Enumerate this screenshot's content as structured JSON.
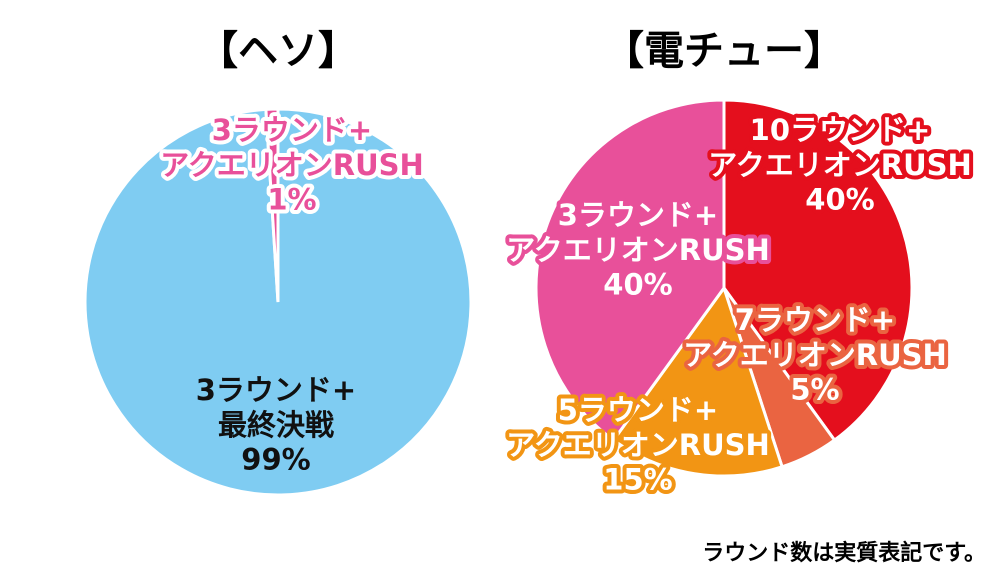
{
  "chart_data": [
    {
      "type": "pie",
      "title": "【ヘソ】",
      "slices": [
        {
          "label_lines": [
            "3ラウンド+",
            "最終決戦",
            "99%"
          ],
          "value": 99,
          "color": "#7fccf2",
          "text_color": "#111111",
          "outline": "none"
        },
        {
          "label_lines": [
            "3ラウンド+",
            "アクエリオンRUSH",
            "1%"
          ],
          "value": 1,
          "color": "#e8509a",
          "text_color": "#e8509a",
          "outline": "#ffffff"
        }
      ]
    },
    {
      "type": "pie",
      "title": "【電チュー】",
      "slices": [
        {
          "label_lines": [
            "10ラウンド+",
            "アクエリオンRUSH",
            "40%"
          ],
          "value": 40,
          "color": "#e40f1d",
          "text_color": "#ffffff",
          "outline": "#e40f1d"
        },
        {
          "label_lines": [
            "7ラウンド+",
            "アクエリオンRUSH",
            "5%"
          ],
          "value": 5,
          "color": "#ea6441",
          "text_color": "#ffffff",
          "outline": "#ea6441"
        },
        {
          "label_lines": [
            "5ラウンド+",
            "アクエリオンRUSH",
            "15%"
          ],
          "value": 15,
          "color": "#f29514",
          "text_color": "#ffffff",
          "outline": "#f29514"
        },
        {
          "label_lines": [
            "3ラウンド+",
            "アクエリオンRUSH",
            "40%"
          ],
          "value": 40,
          "color": "#e8509a",
          "text_color": "#ffffff",
          "outline": "#e8509a"
        }
      ]
    }
  ],
  "footnote": "ラウンド数は実質表記です。"
}
